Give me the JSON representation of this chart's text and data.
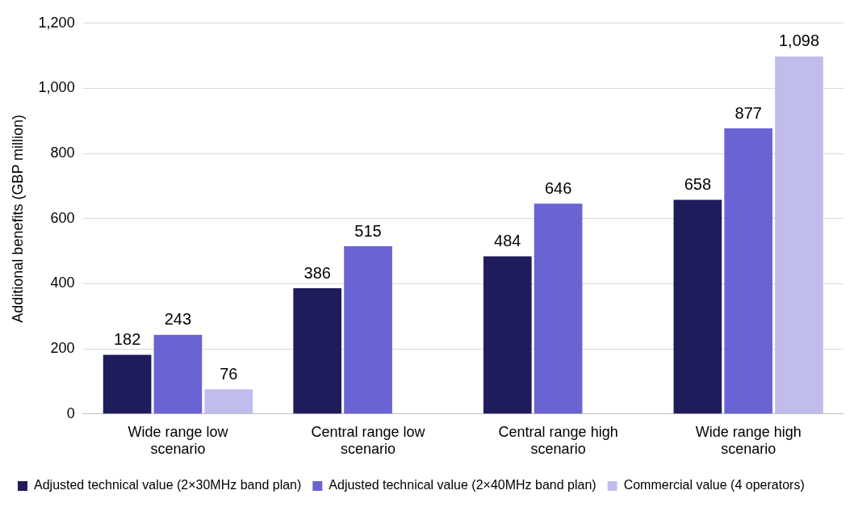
{
  "chart_data": {
    "type": "bar",
    "ylabel": "Additional benefits (GBP million)",
    "categories": [
      "Wide range low scenario",
      "Central range low scenario",
      "Central range high scenario",
      "Wide range high scenario"
    ],
    "series": [
      {
        "name": "Adjusted technical value (2×30MHz band plan)",
        "color": "#1f1c5c",
        "values": [
          182,
          386,
          484,
          658
        ],
        "value_labels": [
          "182",
          "386",
          "484",
          "658"
        ]
      },
      {
        "name": "Adjusted technical value (2×40MHz band plan)",
        "color": "#6a63d4",
        "values": [
          243,
          515,
          646,
          877
        ],
        "value_labels": [
          "243",
          "515",
          "646",
          "877"
        ]
      },
      {
        "name": "Commercial value (4 operators)",
        "color": "#c0bdec",
        "values": [
          76,
          null,
          null,
          1098
        ],
        "value_labels": [
          "76",
          null,
          null,
          "1,098"
        ]
      }
    ],
    "ylim": [
      0,
      1200
    ],
    "yticks": [
      0,
      200,
      400,
      600,
      800,
      {
        "value": 1000,
        "label": "1,000"
      },
      {
        "value": 1200,
        "label": "1,200"
      }
    ],
    "grid": "y",
    "legend": "bottom"
  }
}
